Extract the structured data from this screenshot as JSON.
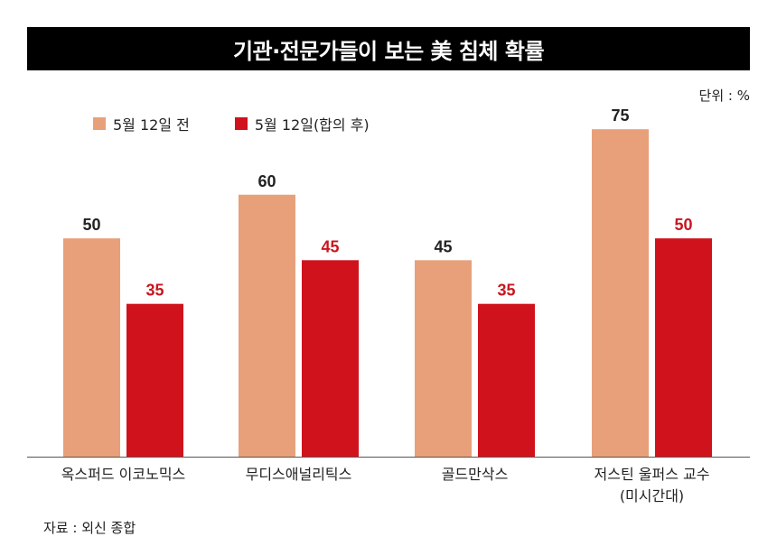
{
  "title": "기관·전문가들이 보는 美 침체 확률",
  "unit": "단위 : %",
  "source": "자료 : 외신 종합",
  "colors": {
    "before": "#E8A07A",
    "after": "#D0121C",
    "after_label": "#C8161E",
    "title_bg": "#000000"
  },
  "chart_data": {
    "type": "bar",
    "categories": [
      [
        "옥스퍼드 이코노믹스"
      ],
      [
        "무디스애널리틱스"
      ],
      [
        "골드만삭스"
      ],
      [
        "저스틴 울퍼스 교수",
        "(미시간대)"
      ]
    ],
    "series": [
      {
        "name": "5월 12일 전",
        "values": [
          50,
          60,
          45,
          75
        ]
      },
      {
        "name": "5월 12일(합의 후)",
        "values": [
          35,
          45,
          35,
          50
        ]
      }
    ],
    "ylim": [
      0,
      80
    ],
    "grid": false,
    "legend": "top-left",
    "xlabel": "",
    "ylabel": ""
  }
}
